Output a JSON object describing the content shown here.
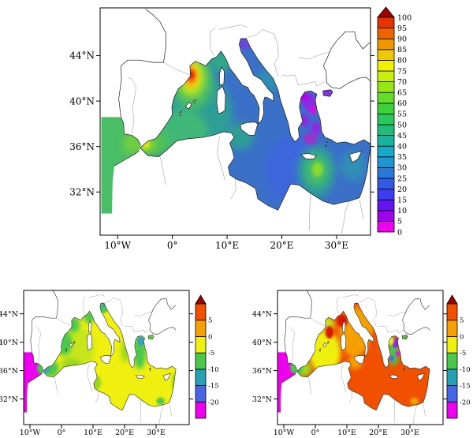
{
  "figure": {
    "background": "#ffffff"
  },
  "panels": {
    "top": {
      "lat_ticks": [
        "44°N",
        "40°N",
        "36°N",
        "32°N"
      ],
      "lon_ticks": [
        "10°W",
        "0°",
        "10°E",
        "20°E",
        "30°E"
      ],
      "colorbar": {
        "labels": [
          "0",
          "5",
          "10",
          "15",
          "20",
          "25",
          "30",
          "35",
          "40",
          "45",
          "50",
          "55",
          "60",
          "65",
          "70",
          "75",
          "80",
          "85",
          "90",
          "95",
          "100"
        ],
        "cell_colors": [
          "#F000F0",
          "#A000F0",
          "#6414F0",
          "#3C3CF0",
          "#325AE6",
          "#2878DC",
          "#1E96D2",
          "#14AAC8",
          "#14B4A0",
          "#1EBE78",
          "#28C85A",
          "#3CD23C",
          "#64DC28",
          "#96E614",
          "#C8F00A",
          "#F0F000",
          "#F0C800",
          "#F09600",
          "#F06400",
          "#E63200"
        ],
        "cap_color": "#A00000"
      }
    },
    "bottom_left": {
      "lat_ticks": [
        "44°N",
        "40°N",
        "36°N",
        "32°N"
      ],
      "lon_ticks": [
        "10°W",
        "0°",
        "10°E",
        "20°E",
        "30°E"
      ],
      "colorbar": {
        "labels": [
          "5",
          "0",
          "-5",
          "-10",
          "-15",
          "-20"
        ],
        "cell_colors": [
          "#EE00EE",
          "#4766E6",
          "#28A0B4",
          "#49C84B",
          "#EFEF10",
          "#F5A005",
          "#F05000"
        ],
        "cap_color": "#A00000"
      }
    },
    "bottom_right": {
      "lat_ticks": [
        "44°N",
        "40°N",
        "36°N",
        "32°N"
      ],
      "lon_ticks": [
        "10°W",
        "0°",
        "10°E",
        "20°E",
        "30°E"
      ],
      "colorbar": {
        "labels": [
          "5",
          "0",
          "-5",
          "-10",
          "-15",
          "-20"
        ],
        "cell_colors": [
          "#EE00EE",
          "#4766E6",
          "#28A0B4",
          "#49C84B",
          "#EFEF10",
          "#F5A005",
          "#F05000"
        ],
        "cap_color": "#A00000"
      }
    }
  },
  "chart_data": [
    {
      "panel": "top",
      "type": "heatmap",
      "subtype": "filled_contour_geographic_map",
      "region": "Mediterranean Sea",
      "lat_tick_values": [
        44,
        40,
        36,
        32
      ],
      "lon_tick_values": [
        -10,
        0,
        10,
        20,
        30
      ],
      "colorbar_range": [
        0,
        100
      ],
      "colorbar_step": 5,
      "base": {
        "color": "#3A70C8",
        "value_approx": 25
      },
      "atlantic_strip": {
        "color": "#49BE66",
        "value_approx": 50
      },
      "features": [
        {
          "lon": 3.0,
          "lat": 38.8,
          "rx_deg": 8.0,
          "ry_deg": 4.0,
          "color": "#2E9E96",
          "value_approx": 38,
          "soft": true,
          "note": "western basin"
        },
        {
          "lon": 22.0,
          "lat": 34.0,
          "rx_deg": 5.0,
          "ry_deg": 3.0,
          "color": "#3C66DC",
          "value_approx": 20,
          "soft": true,
          "note": "Ionian"
        },
        {
          "lon": 2.0,
          "lat": 37.3,
          "rx_deg": 4.5,
          "ry_deg": 2.0,
          "color": "#3FB878",
          "value_approx": 47,
          "soft": true
        },
        {
          "lon": -3.6,
          "lat": 36.3,
          "rx_deg": 3.2,
          "ry_deg": 1.3,
          "color": "#4FC05A",
          "value_approx": 50,
          "soft": true,
          "note": "Alboran Sea"
        },
        {
          "lon": -4.7,
          "lat": 36.25,
          "rx_deg": 1.6,
          "ry_deg": 0.7,
          "color": "#8CD92F",
          "value_approx": 62,
          "soft": true
        },
        {
          "lon": -5.0,
          "lat": 36.2,
          "rx_deg": 0.8,
          "ry_deg": 0.4,
          "color": "#E8E810",
          "value_approx": 72,
          "soft": false
        },
        {
          "lon": -7.3,
          "lat": 36.3,
          "rx_deg": 1.7,
          "ry_deg": 0.9,
          "color": "#6FCF3F",
          "value_approx": 55,
          "soft": true,
          "note": "Gulf of Cadiz"
        },
        {
          "lon": 3.6,
          "lat": 41.9,
          "rx_deg": 3.8,
          "ry_deg": 2.7,
          "color": "#49BE66",
          "value_approx": 50,
          "soft": true,
          "note": "Gulf of Lion ring"
        },
        {
          "lon": 3.5,
          "lat": 42.1,
          "rx_deg": 2.4,
          "ry_deg": 1.7,
          "color": "#BFE51C",
          "value_approx": 65,
          "soft": true
        },
        {
          "lon": 3.4,
          "lat": 42.2,
          "rx_deg": 1.5,
          "ry_deg": 1.1,
          "color": "#F2C50B",
          "value_approx": 80,
          "soft": false
        },
        {
          "lon": 3.4,
          "lat": 42.25,
          "rx_deg": 0.95,
          "ry_deg": 0.65,
          "color": "#F07807",
          "value_approx": 88,
          "soft": false
        },
        {
          "lon": 3.4,
          "lat": 42.3,
          "rx_deg": 0.5,
          "ry_deg": 0.35,
          "color": "#DC1400",
          "value_approx": 97,
          "soft": false,
          "note": "field maximum"
        },
        {
          "lon": 8.8,
          "lat": 43.5,
          "rx_deg": 2.2,
          "ry_deg": 1.0,
          "color": "#2FA887",
          "value_approx": 40,
          "soft": true,
          "note": "Ligurian Sea"
        },
        {
          "lon": 12.3,
          "lat": 36.9,
          "rx_deg": 2.6,
          "ry_deg": 1.2,
          "color": "#2E9E96",
          "value_approx": 38,
          "soft": true,
          "note": "Strait of Sicily"
        },
        {
          "lon": 26.3,
          "lat": 33.8,
          "rx_deg": 3.4,
          "ry_deg": 2.3,
          "color": "#2E9E96",
          "value_approx": 38,
          "soft": true,
          "note": "Levantine eddy"
        },
        {
          "lon": 26.4,
          "lat": 33.9,
          "rx_deg": 2.1,
          "ry_deg": 1.4,
          "color": "#44BD6B",
          "value_approx": 48,
          "soft": true
        },
        {
          "lon": 26.5,
          "lat": 34.0,
          "rx_deg": 1.0,
          "ry_deg": 0.65,
          "color": "#8CD92F",
          "value_approx": 60,
          "soft": false
        },
        {
          "lon": 33.0,
          "lat": 34.3,
          "rx_deg": 2.3,
          "ry_deg": 1.3,
          "color": "#2E8FB4",
          "value_approx": 32,
          "soft": true
        },
        {
          "lon": 17.5,
          "lat": 41.8,
          "rx_deg": 2.2,
          "ry_deg": 1.0,
          "color": "#2E8FB4",
          "value_approx": 32,
          "soft": true,
          "note": "south Adriatic"
        },
        {
          "lon": 13.1,
          "lat": 45.1,
          "rx_deg": 1.3,
          "ry_deg": 0.55,
          "color": "#6A46DC",
          "value_approx": 12,
          "soft": false,
          "note": "north Adriatic"
        },
        {
          "lon": 25.0,
          "lat": 39.9,
          "rx_deg": 1.2,
          "ry_deg": 0.8,
          "color": "#8A2BE2",
          "value_approx": 8,
          "soft": false,
          "note": "Aegean low"
        },
        {
          "lon": 24.1,
          "lat": 38.3,
          "rx_deg": 0.9,
          "ry_deg": 0.55,
          "color": "#8A2BE2",
          "value_approx": 8,
          "soft": false
        },
        {
          "lon": 26.2,
          "lat": 37.6,
          "rx_deg": 1.0,
          "ry_deg": 0.6,
          "color": "#8A2BE2",
          "value_approx": 8,
          "soft": false
        },
        {
          "lon": 25.2,
          "lat": 36.7,
          "rx_deg": 1.3,
          "ry_deg": 0.5,
          "color": "#9932CC",
          "value_approx": 10,
          "soft": false
        },
        {
          "lon": 23.9,
          "lat": 40.4,
          "rx_deg": 0.8,
          "ry_deg": 0.45,
          "color": "#B400E8",
          "value_approx": 6,
          "soft": false
        },
        {
          "lon": 25.7,
          "lat": 39.2,
          "rx_deg": 0.55,
          "ry_deg": 0.4,
          "color": "#E800E8",
          "value_approx": 3,
          "soft": false
        },
        {
          "lon": 28.2,
          "lat": 40.7,
          "rx_deg": 0.9,
          "ry_deg": 0.4,
          "color": "#8A2BE2",
          "value_approx": 8,
          "soft": false,
          "note": "Marmara"
        }
      ]
    },
    {
      "panel": "bottom_left",
      "type": "heatmap",
      "subtype": "filled_contour_geographic_map",
      "region": "Mediterranean Sea",
      "lat_tick_values": [
        44,
        40,
        36,
        32
      ],
      "lon_tick_values": [
        -10,
        0,
        10,
        20,
        30
      ],
      "colorbar_range": [
        -20,
        5
      ],
      "colorbar_step": 5,
      "base": {
        "color": "#EFEF10",
        "value_approx": -2
      },
      "atlantic_strip": {
        "color": "#EE00EE",
        "value_approx": -22
      },
      "features": [
        {
          "lon": 5.0,
          "lat": 39.2,
          "rx_deg": 5.5,
          "ry_deg": 3.0,
          "color": "#C8E61E",
          "value_approx": -4,
          "soft": true
        },
        {
          "lon": 0.8,
          "lat": 39.9,
          "rx_deg": 2.6,
          "ry_deg": 1.7,
          "color": "#49C84B",
          "value_approx": -7,
          "soft": true,
          "note": "Spanish coast"
        },
        {
          "lon": 3.8,
          "lat": 42.5,
          "rx_deg": 2.0,
          "ry_deg": 1.1,
          "color": "#49C84B",
          "value_approx": -7,
          "soft": true,
          "note": "Gulf of Lion"
        },
        {
          "lon": -3.6,
          "lat": 36.3,
          "rx_deg": 2.8,
          "ry_deg": 1.2,
          "color": "#49C84B",
          "value_approx": -7,
          "soft": true,
          "note": "Alboran"
        },
        {
          "lon": -5.0,
          "lat": 36.1,
          "rx_deg": 1.1,
          "ry_deg": 0.5,
          "color": "#3AA0B8",
          "value_approx": -12,
          "soft": false
        },
        {
          "lon": -6.6,
          "lat": 36.3,
          "rx_deg": 1.2,
          "ry_deg": 0.7,
          "color": "#49C84B",
          "value_approx": -7,
          "soft": false
        },
        {
          "lon": 3.0,
          "lat": 36.8,
          "rx_deg": 3.2,
          "ry_deg": 0.9,
          "color": "#9CD71E",
          "value_approx": -5,
          "soft": true,
          "note": "Algerian coast"
        },
        {
          "lon": 8.8,
          "lat": 43.6,
          "rx_deg": 1.9,
          "ry_deg": 0.9,
          "color": "#49C84B",
          "value_approx": -7,
          "soft": true,
          "note": "Ligurian"
        },
        {
          "lon": 13.2,
          "lat": 44.9,
          "rx_deg": 1.7,
          "ry_deg": 0.8,
          "color": "#49C84B",
          "value_approx": -7,
          "soft": false,
          "note": "north Adriatic"
        },
        {
          "lon": 13.4,
          "lat": 45.3,
          "rx_deg": 0.7,
          "ry_deg": 0.35,
          "color": "#3AA0B8",
          "value_approx": -12,
          "soft": false
        },
        {
          "lon": 24.8,
          "lat": 38.6,
          "rx_deg": 2.0,
          "ry_deg": 2.4,
          "color": "#49C84B",
          "value_approx": -7,
          "soft": true,
          "note": "Aegean"
        },
        {
          "lon": 25.2,
          "lat": 40.2,
          "rx_deg": 1.2,
          "ry_deg": 0.7,
          "color": "#3AA0B8",
          "value_approx": -12,
          "soft": false
        },
        {
          "lon": 28.2,
          "lat": 40.7,
          "rx_deg": 0.9,
          "ry_deg": 0.4,
          "color": "#49C84B",
          "value_approx": -7,
          "soft": false,
          "note": "Marmara"
        },
        {
          "lon": 20.2,
          "lat": 38.8,
          "rx_deg": 1.3,
          "ry_deg": 1.6,
          "color": "#9CD71E",
          "value_approx": -5,
          "soft": true
        },
        {
          "lon": 11.0,
          "lat": 34.3,
          "rx_deg": 1.6,
          "ry_deg": 1.0,
          "color": "#9CD71E",
          "value_approx": -5,
          "soft": false,
          "note": "Gulf of Gabes"
        },
        {
          "lon": 31.4,
          "lat": 31.7,
          "rx_deg": 1.3,
          "ry_deg": 0.5,
          "color": "#49C84B",
          "value_approx": -7,
          "soft": false,
          "note": "Nile delta"
        },
        {
          "lon": 35.8,
          "lat": 34.2,
          "rx_deg": 0.8,
          "ry_deg": 1.5,
          "color": "#9CD71E",
          "value_approx": -5,
          "soft": false,
          "note": "Levant coast"
        }
      ]
    },
    {
      "panel": "bottom_right",
      "type": "heatmap",
      "subtype": "filled_contour_geographic_map",
      "region": "Mediterranean Sea",
      "lat_tick_values": [
        44,
        40,
        36,
        32
      ],
      "lon_tick_values": [
        -10,
        0,
        10,
        20,
        30
      ],
      "colorbar_range": [
        -20,
        5
      ],
      "colorbar_step": 5,
      "base": {
        "color": "#F05000",
        "value_approx": 6
      },
      "atlantic_strip": {
        "color": "#EE00EE",
        "value_approx": -22
      },
      "features": [
        {
          "lon": 12.5,
          "lat": 41.5,
          "rx_deg": 5.0,
          "ry_deg": 3.5,
          "color": "#F5A005",
          "value_approx": 3,
          "soft": true,
          "note": "central basin"
        },
        {
          "lon": 16.0,
          "lat": 42.8,
          "rx_deg": 3.0,
          "ry_deg": 1.8,
          "color": "#F5A005",
          "value_approx": 3,
          "soft": true,
          "note": "Adriatic"
        },
        {
          "lon": 3.0,
          "lat": 38.6,
          "rx_deg": 5.0,
          "ry_deg": 3.0,
          "color": "#EFEF10",
          "value_approx": -2,
          "soft": true,
          "note": "western basin"
        },
        {
          "lon": 3.8,
          "lat": 42.4,
          "rx_deg": 2.2,
          "ry_deg": 1.2,
          "color": "#C8E61E",
          "value_approx": -4,
          "soft": true,
          "note": "Gulf of Lion"
        },
        {
          "lon": -3.8,
          "lat": 36.3,
          "rx_deg": 2.6,
          "ry_deg": 1.1,
          "color": "#9CD71E",
          "value_approx": -5,
          "soft": true,
          "note": "Alboran"
        },
        {
          "lon": -5.2,
          "lat": 36.1,
          "rx_deg": 1.2,
          "ry_deg": 0.55,
          "color": "#49C84B",
          "value_approx": -7,
          "soft": false,
          "note": "Gibraltar"
        },
        {
          "lon": -6.8,
          "lat": 36.4,
          "rx_deg": 1.2,
          "ry_deg": 0.7,
          "color": "#49C84B",
          "value_approx": -7,
          "soft": false,
          "note": "Cadiz"
        },
        {
          "lon": 8.6,
          "lat": 43.0,
          "rx_deg": 1.6,
          "ry_deg": 0.9,
          "color": "#DC1400",
          "value_approx": 8,
          "soft": false,
          "note": "Ligurian high"
        },
        {
          "lon": 4.5,
          "lat": 41.4,
          "rx_deg": 1.3,
          "ry_deg": 0.9,
          "color": "#DC1400",
          "value_approx": 8,
          "soft": false
        },
        {
          "lon": 24.8,
          "lat": 38.7,
          "rx_deg": 1.8,
          "ry_deg": 2.0,
          "color": "#49C84B",
          "value_approx": -7,
          "soft": true,
          "note": "Aegean"
        },
        {
          "lon": 25.4,
          "lat": 39.9,
          "rx_deg": 1.1,
          "ry_deg": 0.7,
          "color": "#9020E8",
          "value_approx": -18,
          "soft": false
        },
        {
          "lon": 26.1,
          "lat": 38.4,
          "rx_deg": 0.6,
          "ry_deg": 0.4,
          "color": "#EE00EE",
          "value_approx": -22,
          "soft": false
        },
        {
          "lon": 24.2,
          "lat": 37.7,
          "rx_deg": 0.7,
          "ry_deg": 0.45,
          "color": "#4766E6",
          "value_approx": -17,
          "soft": false
        },
        {
          "lon": 23.9,
          "lat": 40.2,
          "rx_deg": 1.0,
          "ry_deg": 0.6,
          "color": "#EFEF10",
          "value_approx": -2,
          "soft": false
        },
        {
          "lon": 28.2,
          "lat": 40.7,
          "rx_deg": 0.9,
          "ry_deg": 0.4,
          "color": "#49C84B",
          "value_approx": -7,
          "soft": false,
          "note": "Marmara"
        },
        {
          "lon": 12.6,
          "lat": 37.2,
          "rx_deg": 2.2,
          "ry_deg": 1.0,
          "color": "#F5A005",
          "value_approx": 3,
          "soft": true,
          "note": "Strait of Sicily"
        },
        {
          "lon": 31.4,
          "lat": 31.7,
          "rx_deg": 1.3,
          "ry_deg": 0.5,
          "color": "#F5A005",
          "value_approx": 3,
          "soft": false,
          "note": "Nile delta"
        }
      ]
    }
  ]
}
